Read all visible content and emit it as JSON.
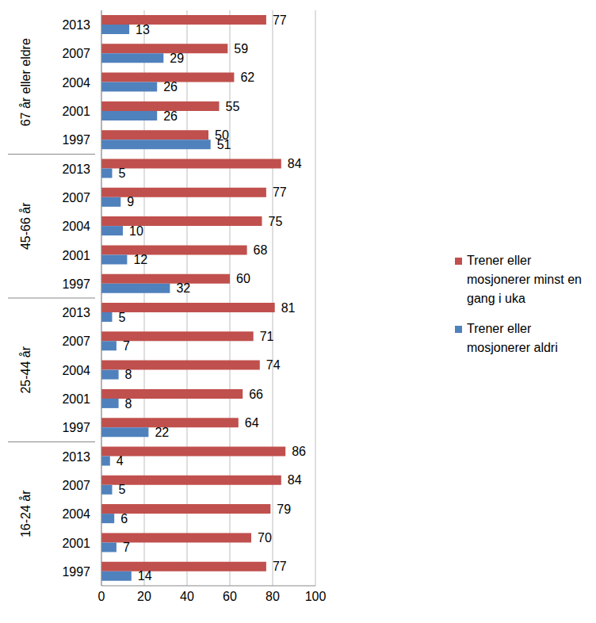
{
  "chart_data": {
    "type": "bar",
    "orientation": "horizontal",
    "group_labels": [
      "67 år eller eldre",
      "45-66 år",
      "25-44 år",
      "16-24 år"
    ],
    "categories": [
      "2013",
      "2007",
      "2004",
      "2001",
      "1997",
      "2013",
      "2007",
      "2004",
      "2001",
      "1997",
      "2013",
      "2007",
      "2004",
      "2001",
      "1997",
      "2013",
      "2007",
      "2004",
      "2001",
      "1997"
    ],
    "series": [
      {
        "name": "Trener eller mosjonerer minst en gang i uka",
        "color": "#c0504d",
        "values": [
          77,
          59,
          62,
          55,
          50,
          84,
          77,
          75,
          68,
          60,
          81,
          71,
          74,
          66,
          64,
          86,
          84,
          79,
          70,
          77
        ]
      },
      {
        "name": "Trener eller mosjonerer aldri",
        "color": "#4f81bd",
        "values": [
          13,
          29,
          26,
          26,
          51,
          5,
          9,
          10,
          12,
          32,
          5,
          7,
          8,
          8,
          22,
          4,
          5,
          6,
          7,
          14
        ]
      }
    ],
    "xlim": [
      0,
      100
    ],
    "xticks": [
      0,
      20,
      40,
      60,
      80,
      100
    ],
    "grid": true,
    "data_labels": true,
    "legend": "right"
  }
}
